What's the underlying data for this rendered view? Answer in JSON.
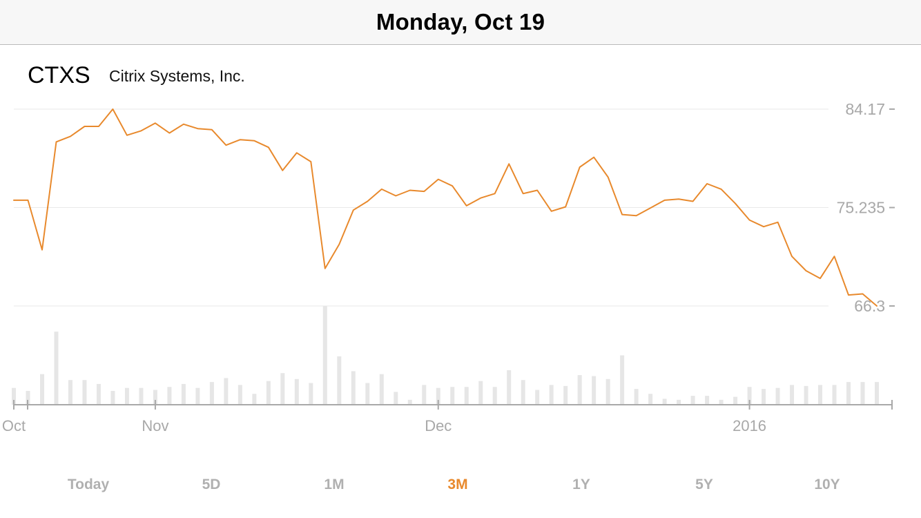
{
  "header": {
    "date": "Monday, Oct 19"
  },
  "stock": {
    "symbol": "CTXS",
    "name": "Citrix Systems, Inc."
  },
  "accent_color": "#E8892C",
  "chart_data": {
    "type": "line",
    "series": [
      {
        "kind": "price",
        "values": [
          75.9,
          75.9,
          71.4,
          81.2,
          81.7,
          82.6,
          82.6,
          84.17,
          81.8,
          82.2,
          82.9,
          82.0,
          82.8,
          82.4,
          82.3,
          80.9,
          81.4,
          81.3,
          80.7,
          78.6,
          80.2,
          79.4,
          69.7,
          71.9,
          75.0,
          75.8,
          76.9,
          76.3,
          76.8,
          76.7,
          77.8,
          77.2,
          75.4,
          76.1,
          76.5,
          79.2,
          76.5,
          76.8,
          74.9,
          75.3,
          78.9,
          79.8,
          78.0,
          74.6,
          74.5,
          75.2,
          75.9,
          76.0,
          75.8,
          77.4,
          76.9,
          75.6,
          74.1,
          73.5,
          73.9,
          70.8,
          69.5,
          68.8,
          70.8,
          67.3,
          67.4,
          66.3
        ]
      },
      {
        "kind": "volume",
        "values": [
          0.17,
          0.14,
          0.31,
          0.74,
          0.25,
          0.25,
          0.21,
          0.14,
          0.17,
          0.17,
          0.15,
          0.18,
          0.21,
          0.17,
          0.23,
          0.27,
          0.2,
          0.11,
          0.24,
          0.32,
          0.26,
          0.22,
          1.0,
          0.49,
          0.34,
          0.22,
          0.31,
          0.13,
          0.05,
          0.2,
          0.17,
          0.18,
          0.18,
          0.24,
          0.18,
          0.35,
          0.25,
          0.15,
          0.2,
          0.19,
          0.3,
          0.29,
          0.26,
          0.5,
          0.16,
          0.11,
          0.06,
          0.05,
          0.09,
          0.09,
          0.05,
          0.08,
          0.18,
          0.16,
          0.17,
          0.2,
          0.19,
          0.2,
          0.2,
          0.23,
          0.23,
          0.23
        ]
      }
    ],
    "y_ticks": [
      "84.17",
      "75.235",
      "66.3"
    ],
    "y_tick_values": [
      84.17,
      75.235,
      66.3
    ],
    "ylim": [
      66.3,
      84.17
    ],
    "x_tick_labels": [
      "Oct",
      "Nov",
      "Dec",
      "2016"
    ],
    "x_tick_index": [
      0,
      10,
      30,
      52
    ],
    "grid": true
  },
  "ranges": [
    {
      "label": "Today",
      "active": false
    },
    {
      "label": "5D",
      "active": false
    },
    {
      "label": "1M",
      "active": false
    },
    {
      "label": "3M",
      "active": true
    },
    {
      "label": "1Y",
      "active": false
    },
    {
      "label": "5Y",
      "active": false
    },
    {
      "label": "10Y",
      "active": false
    }
  ]
}
